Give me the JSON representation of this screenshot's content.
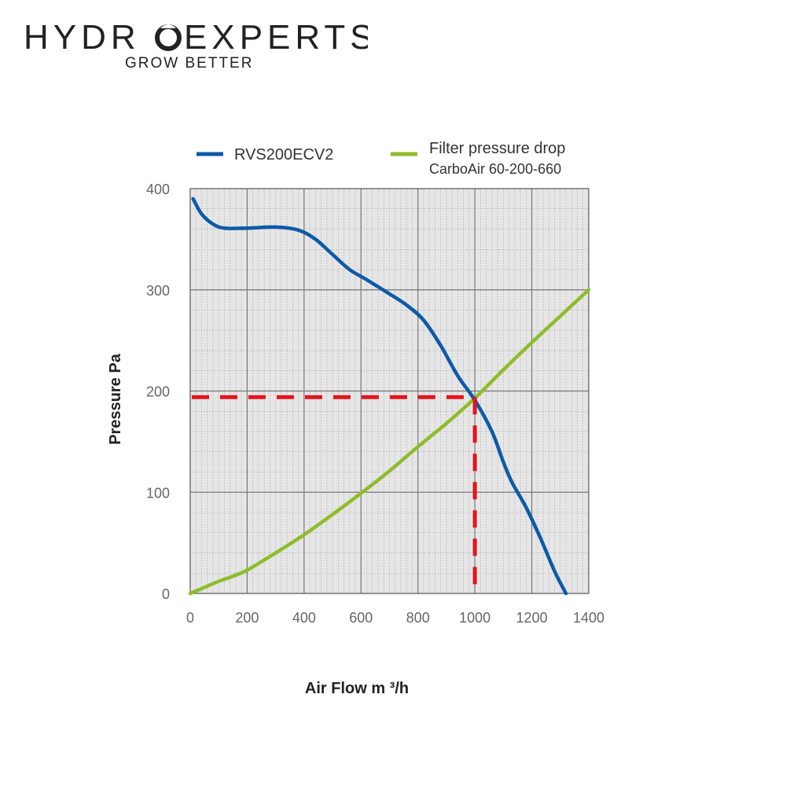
{
  "brand": {
    "name_part1": "HYDR",
    "name_part2": "EXPERTS",
    "tagline": "GROW BETTER"
  },
  "chart_data": {
    "type": "line",
    "xlabel": "Air Flow m ³/h",
    "ylabel": "Pressure Pa",
    "xlim": [
      0,
      1400
    ],
    "ylim": [
      0,
      400
    ],
    "xticks": [
      0,
      200,
      400,
      600,
      800,
      1000,
      1200,
      1400
    ],
    "yticks": [
      0,
      100,
      200,
      300,
      400
    ],
    "grid": true,
    "legend_position": "top",
    "series": [
      {
        "name": "RVS200ECV2",
        "color": "#0d5aa7",
        "x": [
          10,
          40,
          80,
          120,
          200,
          300,
          380,
          440,
          500,
          560,
          620,
          700,
          760,
          820,
          880,
          940,
          1000,
          1060,
          1100,
          1130,
          1180,
          1230,
          1280,
          1320
        ],
        "y": [
          390,
          375,
          365,
          361,
          361,
          362,
          359,
          350,
          335,
          320,
          310,
          296,
          285,
          270,
          245,
          215,
          191,
          160,
          130,
          110,
          85,
          55,
          22,
          0
        ]
      },
      {
        "name": "Filter pressure drop",
        "name_line2": "CarboAir 60-200-660",
        "color": "#8dbd2a",
        "x": [
          0,
          50,
          100,
          150,
          200,
          300,
          400,
          500,
          600,
          700,
          800,
          900,
          1000,
          1100,
          1200,
          1300,
          1400
        ],
        "y": [
          0,
          6,
          12,
          17,
          23,
          40,
          58,
          78,
          99,
          121,
          145,
          168,
          193,
          221,
          248,
          274,
          300
        ]
      }
    ],
    "operating_point": {
      "x": 1000,
      "y": 194,
      "color": "#e3141b"
    }
  }
}
